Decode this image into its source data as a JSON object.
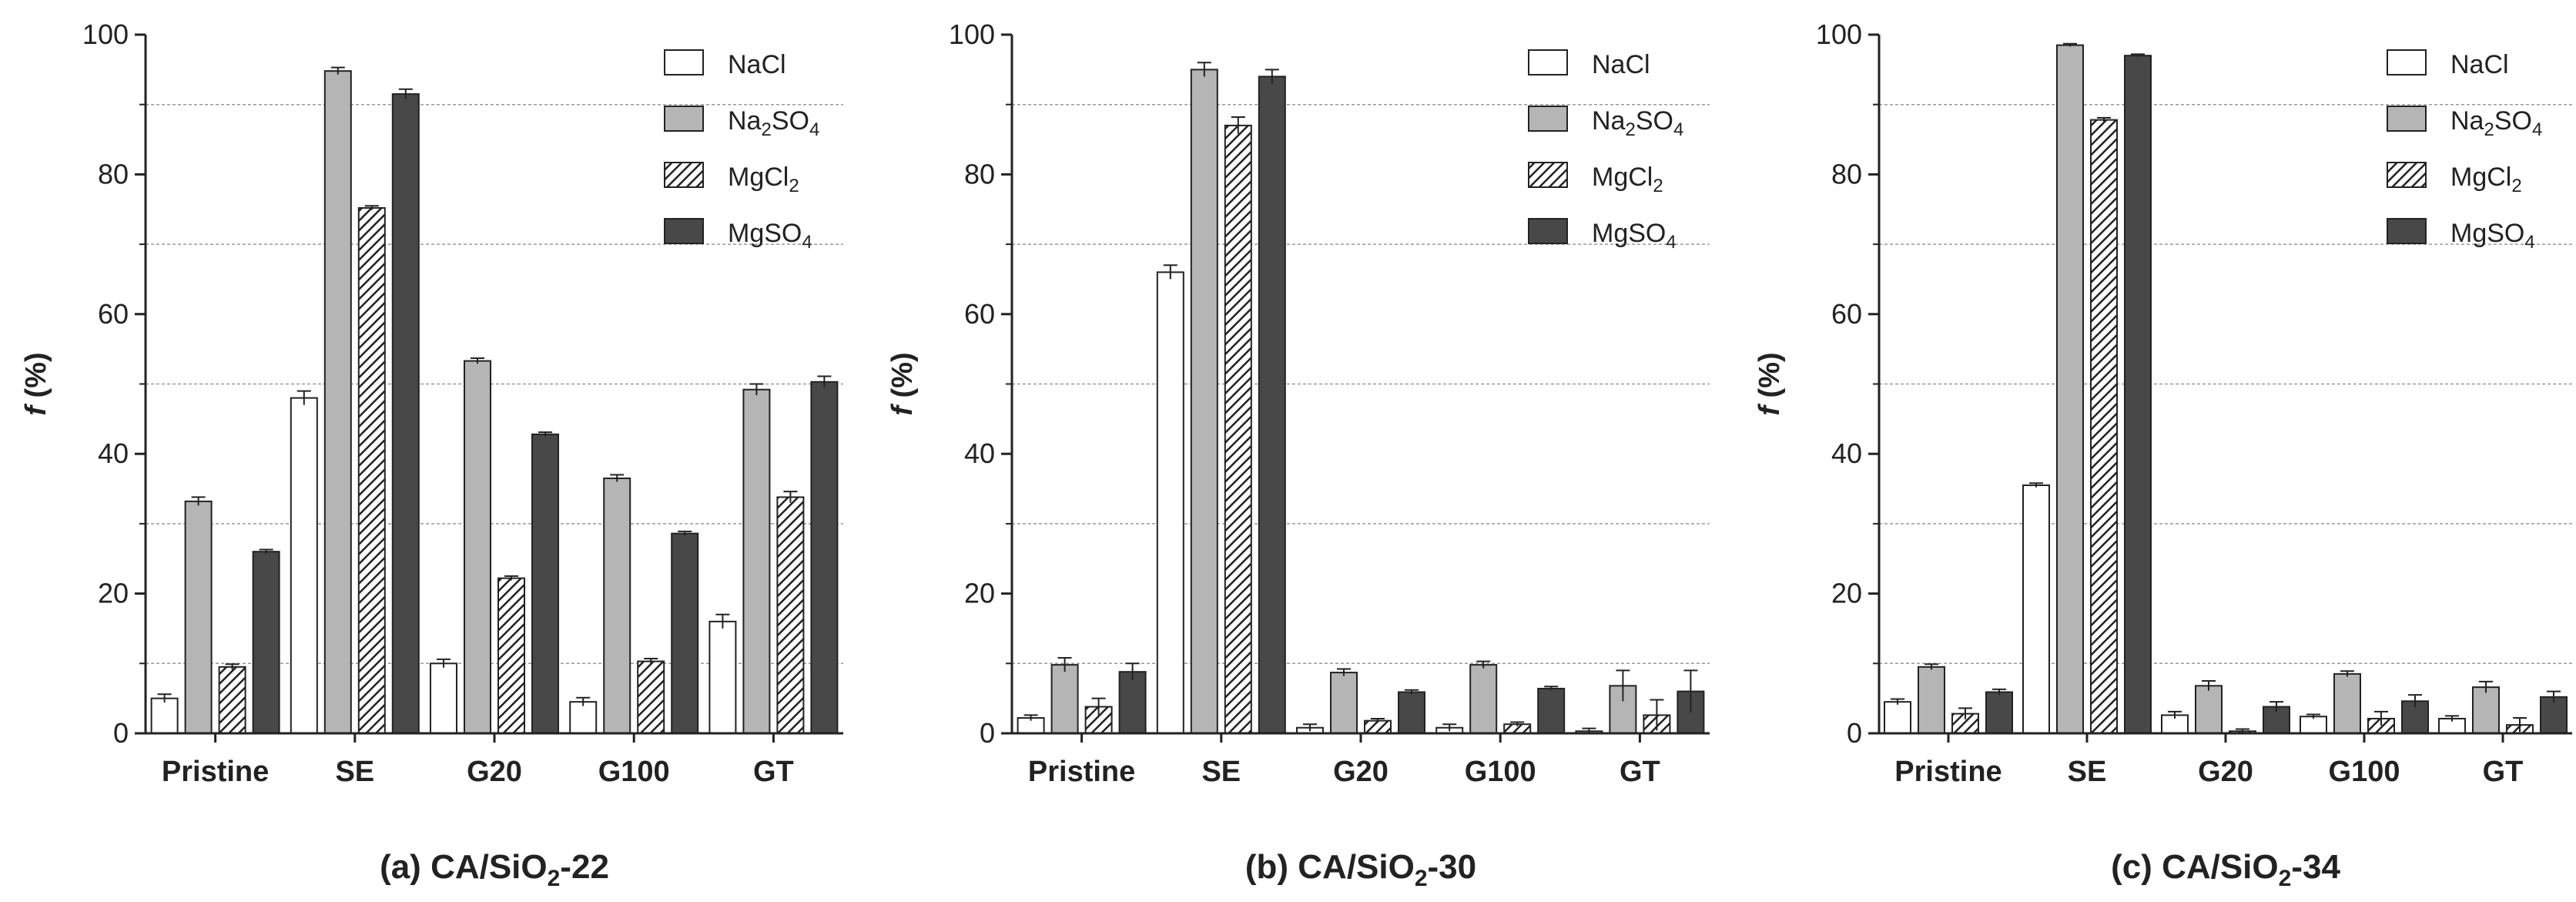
{
  "figure": {
    "axis_label_main": "f",
    "axis_label_unit": " (%)"
  },
  "chart_data": [
    {
      "type": "bar",
      "panel": "a",
      "title_prefix": "(a) CA/SiO",
      "title_sub": "2",
      "title_suffix": "-22",
      "ylabel": "f (%)",
      "ylim": [
        0,
        100
      ],
      "yticks": [
        "0",
        "20",
        "40",
        "60",
        "80",
        "100"
      ],
      "categories": [
        "Pristine",
        "SE",
        "G20",
        "G100",
        "GT"
      ],
      "series": [
        {
          "key": "nacl",
          "name_parts": [
            "NaCl"
          ],
          "values": [
            5,
            48,
            10,
            4.5,
            16
          ],
          "errors": [
            0.6,
            1.0,
            0.6,
            0.6,
            1.0
          ]
        },
        {
          "key": "na2so4",
          "name_parts": [
            "Na",
            "2",
            "SO",
            "4"
          ],
          "values": [
            33.2,
            94.8,
            53.3,
            36.5,
            49.2
          ],
          "errors": [
            0.6,
            0.5,
            0.4,
            0.5,
            0.8
          ]
        },
        {
          "key": "mgcl2",
          "name_parts": [
            "MgCl",
            "2"
          ],
          "values": [
            9.5,
            75.2,
            22.2,
            10.3,
            33.8
          ],
          "errors": [
            0.4,
            0.3,
            0.3,
            0.4,
            0.8
          ]
        },
        {
          "key": "mgso4",
          "name_parts": [
            "MgSO",
            "4"
          ],
          "values": [
            26,
            91.5,
            42.8,
            28.6,
            50.3
          ],
          "errors": [
            0.3,
            0.7,
            0.3,
            0.3,
            0.8
          ]
        }
      ]
    },
    {
      "type": "bar",
      "panel": "b",
      "title_prefix": "(b) CA/SiO",
      "title_sub": "2",
      "title_suffix": "-30",
      "ylabel": "f (%)",
      "ylim": [
        0,
        100
      ],
      "yticks": [
        "0",
        "20",
        "40",
        "60",
        "80",
        "100"
      ],
      "categories": [
        "Pristine",
        "SE",
        "G20",
        "G100",
        "GT"
      ],
      "series": [
        {
          "key": "nacl",
          "name_parts": [
            "NaCl"
          ],
          "values": [
            2.2,
            66,
            0.8,
            0.8,
            0.3
          ],
          "errors": [
            0.4,
            1.0,
            0.5,
            0.5,
            0.4
          ]
        },
        {
          "key": "na2so4",
          "name_parts": [
            "Na",
            "2",
            "SO",
            "4"
          ],
          "values": [
            9.8,
            95,
            8.7,
            9.8,
            6.8
          ],
          "errors": [
            1.0,
            1.0,
            0.5,
            0.5,
            2.2
          ]
        },
        {
          "key": "mgcl2",
          "name_parts": [
            "MgCl",
            "2"
          ],
          "values": [
            3.8,
            87,
            1.8,
            1.3,
            2.6
          ],
          "errors": [
            1.2,
            1.2,
            0.3,
            0.3,
            2.2
          ]
        },
        {
          "key": "mgso4",
          "name_parts": [
            "MgSO",
            "4"
          ],
          "values": [
            8.8,
            94,
            5.9,
            6.4,
            6
          ],
          "errors": [
            1.2,
            1.0,
            0.3,
            0.3,
            3.0
          ]
        }
      ]
    },
    {
      "type": "bar",
      "panel": "c",
      "title_prefix": "(c) CA/SiO",
      "title_sub": "2",
      "title_suffix": "-34",
      "ylabel": "f (%)",
      "ylim": [
        0,
        100
      ],
      "yticks": [
        "0",
        "20",
        "40",
        "60",
        "80",
        "100"
      ],
      "categories": [
        "Pristine",
        "SE",
        "G20",
        "G100",
        "GT"
      ],
      "series": [
        {
          "key": "nacl",
          "name_parts": [
            "NaCl"
          ],
          "values": [
            4.5,
            35.5,
            2.6,
            2.4,
            2.1
          ],
          "errors": [
            0.4,
            0.3,
            0.5,
            0.3,
            0.4
          ]
        },
        {
          "key": "na2so4",
          "name_parts": [
            "Na",
            "2",
            "SO",
            "4"
          ],
          "values": [
            9.5,
            98.5,
            6.8,
            8.5,
            6.6
          ],
          "errors": [
            0.4,
            0.2,
            0.7,
            0.4,
            0.8
          ]
        },
        {
          "key": "mgcl2",
          "name_parts": [
            "MgCl",
            "2"
          ],
          "values": [
            2.8,
            87.8,
            0.3,
            2.1,
            1.2
          ],
          "errors": [
            0.8,
            0.3,
            0.3,
            1.0,
            1.0
          ]
        },
        {
          "key": "mgso4",
          "name_parts": [
            "MgSO",
            "4"
          ],
          "values": [
            5.9,
            97,
            3.8,
            4.6,
            5.2
          ],
          "errors": [
            0.4,
            0.2,
            0.7,
            0.9,
            0.8
          ]
        }
      ]
    }
  ]
}
